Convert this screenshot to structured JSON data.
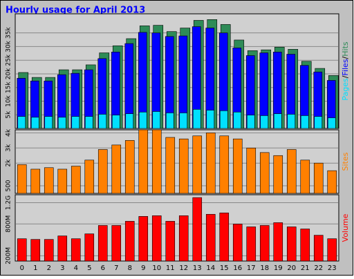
{
  "chart_data": {
    "type": "bar",
    "title": "Hourly usage for April 2013",
    "categories": [
      "0",
      "1",
      "2",
      "3",
      "4",
      "5",
      "6",
      "7",
      "8",
      "9",
      "10",
      "11",
      "12",
      "13",
      "14",
      "15",
      "16",
      "17",
      "18",
      "19",
      "20",
      "21",
      "22",
      "23"
    ],
    "legend_separator": "/",
    "grid": true,
    "panels": [
      {
        "ylim": [
          0,
          42000
        ],
        "yticks": [
          {
            "value": 5000,
            "label": "5k"
          },
          {
            "value": 10000,
            "label": "10k"
          },
          {
            "value": 15000,
            "label": "15k"
          },
          {
            "value": 20000,
            "label": "20k"
          },
          {
            "value": 25000,
            "label": "25k"
          },
          {
            "value": 30000,
            "label": "30k"
          },
          {
            "value": 35000,
            "label": "35k"
          }
        ],
        "series": [
          {
            "name": "Hits",
            "color": "#2e8b57",
            "values": [
              20500,
              18700,
              18700,
              21500,
              21500,
              23300,
              27700,
              30300,
              32900,
              37600,
              37800,
              35500,
              36800,
              39600,
              39900,
              38100,
              32400,
              28500,
              28800,
              29800,
              29000,
              24600,
              22000,
              19400
            ]
          },
          {
            "name": "Files",
            "color": "#0000ff",
            "values": [
              18400,
              17400,
              17400,
              19700,
              20200,
              21500,
              25600,
              28000,
              31100,
              35200,
              35000,
              33700,
              33900,
              37300,
              36800,
              35000,
              29500,
              26700,
              27700,
              28000,
              27200,
              23100,
              20700,
              17600
            ]
          },
          {
            "name": "Pages",
            "color": "#00e0ff",
            "values": [
              4400,
              4100,
              4400,
              4100,
              4400,
              4400,
              5200,
              4900,
              5400,
              6000,
              6200,
              5700,
              5700,
              7000,
              6700,
              6500,
              6000,
              4900,
              4700,
              5400,
              5200,
              4700,
              4400,
              3900
            ]
          }
        ]
      },
      {
        "ylim": [
          0,
          4200
        ],
        "yticks": [
          500,
          {
            "value": 2000,
            "label": "2k"
          },
          {
            "value": 3000,
            "label": "3k"
          },
          {
            "value": 4000,
            "label": "4k"
          }
        ],
        "series": [
          {
            "name": "Sites",
            "color": "#ff8000",
            "values": [
              1900,
              1600,
              1700,
              1600,
              1800,
              2200,
              2900,
              3200,
              3500,
              4200,
              4200,
              3700,
              3600,
              3800,
              4000,
              3800,
              3600,
              3000,
              2700,
              2500,
              2900,
              2200,
              2000,
              1500
            ]
          }
        ]
      },
      {
        "ylim": [
          100,
          1350
        ],
        "yticks": [
          {
            "value": 200,
            "label": "200M"
          },
          {
            "value": 800,
            "label": "800M"
          },
          {
            "value": 1200,
            "label": "1.2G"
          }
        ],
        "series": [
          {
            "name": "Volume",
            "color": "#ff0000",
            "values": [
              521,
              508,
              508,
              574,
              521,
              613,
              771,
              771,
              850,
              942,
              955,
              850,
              955,
              1297,
              982,
              1008,
              797,
              745,
              771,
              824,
              745,
              705,
              587,
              521
            ]
          }
        ]
      }
    ]
  }
}
